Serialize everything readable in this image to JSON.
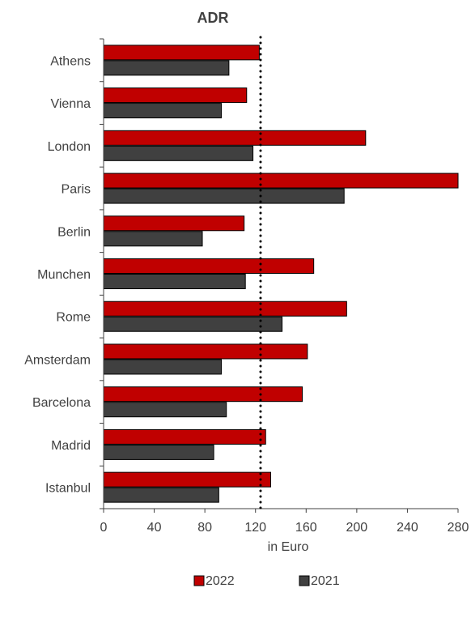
{
  "chart_data": {
    "type": "bar",
    "orientation": "horizontal",
    "title": "ADR",
    "xlabel": "in Euro",
    "ylabel": "",
    "xlim": [
      0,
      280
    ],
    "x_ticks": [
      "0",
      "40",
      "80",
      "120",
      "160",
      "200",
      "240",
      "280"
    ],
    "categories": [
      "Athens",
      "Vienna",
      "London",
      "Paris",
      "Berlin",
      "Munchen",
      "Rome",
      "Amsterdam",
      "Barcelona",
      "Madrid",
      "Istanbul"
    ],
    "series": [
      {
        "name": "2022",
        "color": "#c00000",
        "values": [
          123,
          113,
          207,
          282,
          111,
          166,
          192,
          161,
          157,
          128,
          132
        ]
      },
      {
        "name": "2021",
        "color": "#404040",
        "values": [
          99,
          93,
          118,
          190,
          78,
          112,
          141,
          93,
          97,
          87,
          91
        ]
      }
    ],
    "reference_line": {
      "value": 124,
      "style": "dotted",
      "color": "#000000"
    },
    "grid": false,
    "legend_position": "bottom"
  }
}
